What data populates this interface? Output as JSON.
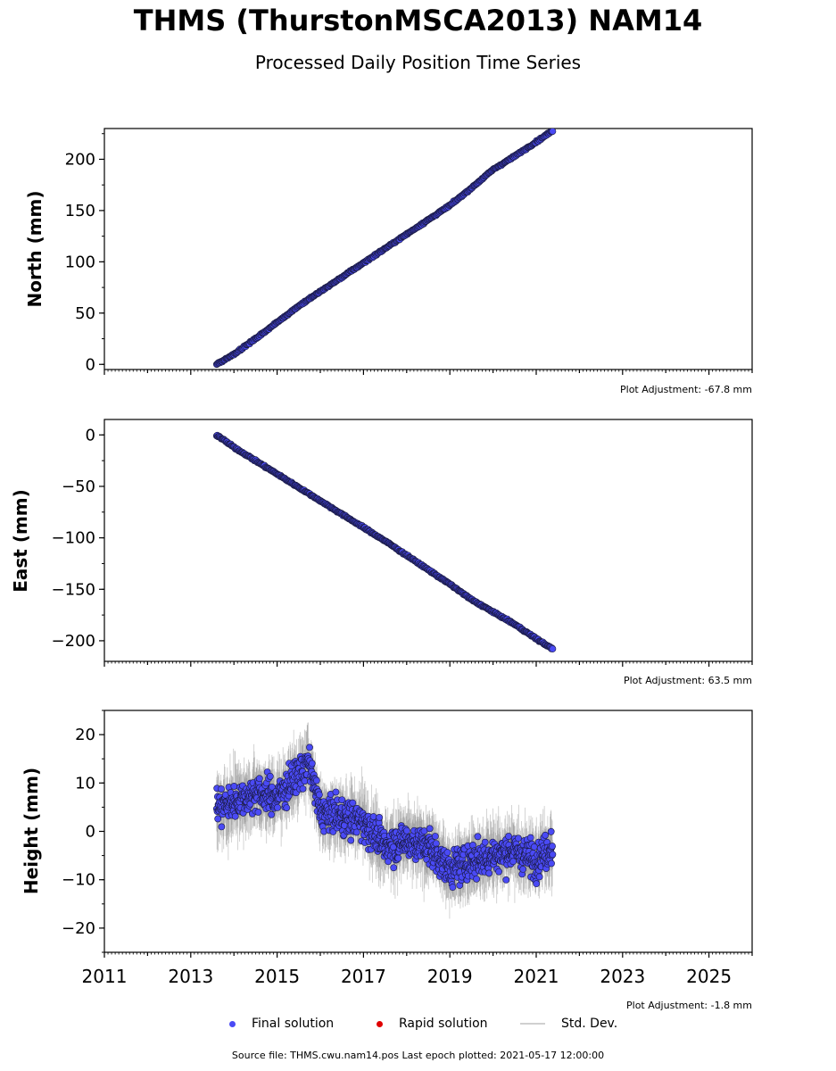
{
  "header": {
    "title": "THMS (ThurstonMSCA2013) NAM14",
    "subtitle": "Processed Daily Position Time Series"
  },
  "legend": {
    "final_label": "Final solution",
    "rapid_label": "Rapid solution",
    "std_label": "Std. Dev.",
    "final_color": "#4a4af5",
    "rapid_color": "#e00000",
    "std_color": "#d0d0d0"
  },
  "footer": {
    "text": "Source file: THMS.cwu.nam14.pos  Last epoch plotted: 2021-05-17 12:00:00"
  },
  "colors": {
    "marker_fill": "#4a4af5",
    "marker_edge": "#1a1a40",
    "std": "#888888"
  },
  "chart_data": [
    {
      "type": "scatter",
      "ylabel": "North (mm)",
      "xlim": [
        2011,
        2026
      ],
      "ylim": [
        -5,
        230
      ],
      "yticks": [
        0,
        50,
        100,
        150,
        200
      ],
      "ytick_labels": [
        "0",
        "50",
        "100",
        "150",
        "200"
      ],
      "adjustment": "Plot Adjustment: -67.8 mm",
      "series": [
        {
          "x": [
            2013.6,
            2014.0,
            2014.5,
            2015.0,
            2015.5,
            2016.0,
            2016.5,
            2017.0,
            2017.5,
            2018.0,
            2018.5,
            2019.0,
            2019.5,
            2020.0,
            2020.5,
            2021.0,
            2021.38
          ],
          "y": [
            0,
            10,
            25,
            41,
            57,
            71,
            85,
            99,
            113,
            127,
            141,
            155,
            172,
            190,
            203,
            217,
            228
          ]
        }
      ]
    },
    {
      "type": "scatter",
      "ylabel": "East (mm)",
      "xlim": [
        2011,
        2026
      ],
      "ylim": [
        -220,
        15
      ],
      "yticks": [
        0,
        -50,
        -100,
        -150,
        -200
      ],
      "ytick_labels": [
        "0",
        "−50",
        "−100",
        "−150",
        "−200"
      ],
      "adjustment": "Plot Adjustment: 63.5 mm",
      "series": [
        {
          "x": [
            2013.6,
            2014.0,
            2014.5,
            2015.0,
            2015.5,
            2016.0,
            2016.5,
            2017.0,
            2017.5,
            2018.0,
            2018.5,
            2019.0,
            2019.5,
            2020.0,
            2020.5,
            2021.0,
            2021.38
          ],
          "y": [
            0,
            -12,
            -25,
            -38,
            -51,
            -64,
            -77,
            -90,
            -103,
            -117,
            -131,
            -145,
            -160,
            -172,
            -184,
            -198,
            -208
          ]
        }
      ]
    },
    {
      "type": "scatter",
      "ylabel": "Height (mm)",
      "xlim": [
        2011,
        2026
      ],
      "ylim": [
        -25,
        25
      ],
      "yticks": [
        20,
        10,
        0,
        -10,
        -20
      ],
      "ytick_labels": [
        "20",
        "10",
        "0",
        "−10",
        "−20"
      ],
      "xticks": [
        2011,
        2013,
        2015,
        2017,
        2019,
        2021,
        2023,
        2025
      ],
      "xtick_labels": [
        "2011",
        "2013",
        "2015",
        "2017",
        "2019",
        "2021",
        "2023",
        "2025"
      ],
      "adjustment": "Plot Adjustment: -1.8 mm",
      "series": [
        {
          "x": [
            2013.6,
            2014.0,
            2014.5,
            2015.0,
            2015.5,
            2015.75,
            2016.0,
            2016.5,
            2017.0,
            2017.5,
            2018.0,
            2018.5,
            2019.0,
            2019.5,
            2020.0,
            2020.5,
            2021.0,
            2021.38
          ],
          "y": [
            5,
            6,
            8,
            7,
            12,
            14,
            4,
            3,
            2,
            -3,
            -2,
            -3,
            -8,
            -6,
            -5,
            -4,
            -6,
            -3
          ]
        }
      ]
    }
  ]
}
